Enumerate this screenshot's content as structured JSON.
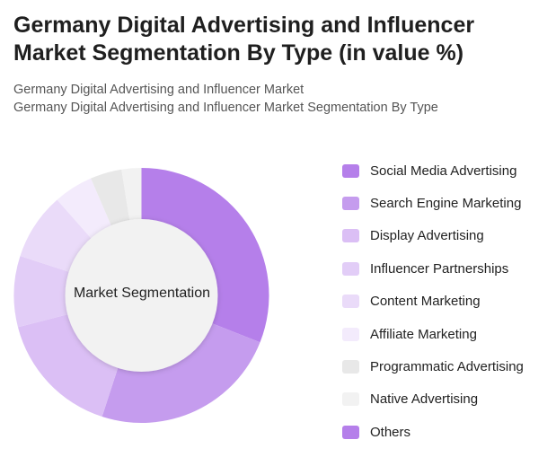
{
  "header": {
    "title": "Germany Digital Advertising and Influencer Market Segmentation By Type (in value %)",
    "subtitle_1": "Germany Digital Advertising and Influencer Market",
    "subtitle_2": "Germany Digital Advertising and Influencer Market Segmentation By Type"
  },
  "chart_data": {
    "type": "pie",
    "variant": "donut",
    "center_label": "Market Segmentation",
    "legend_position": "right",
    "categories": [
      "Social Media Advertising",
      "Search Engine Marketing",
      "Display Advertising",
      "Influencer Partnerships",
      "Content Marketing",
      "Affiliate Marketing",
      "Programmatic Advertising",
      "Native Advertising",
      "Others"
    ],
    "values": [
      31,
      24,
      16,
      9,
      8.5,
      5,
      4,
      2.5,
      0
    ],
    "colors": [
      "#b57fea",
      "#c59cee",
      "#dbbff5",
      "#e2cdf7",
      "#eadbf9",
      "#f3ebfc",
      "#e8e8e8",
      "#f2f2f2",
      "#b57fea"
    ]
  }
}
